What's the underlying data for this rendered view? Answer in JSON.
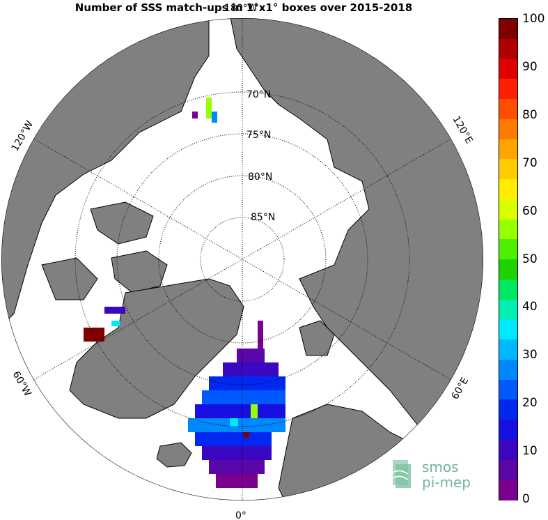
{
  "title": "Number of SSS match-ups in 1°x1° boxes over 2015-2018",
  "lat_labels": [
    "70°N",
    "75°N",
    "80°N",
    "85°N"
  ],
  "lon_labels": {
    "top": "180°W",
    "left_upper": "120°W",
    "left_lower": "60°W",
    "bottom": "0°",
    "right_upper": "120°E",
    "right_lower": "60°E"
  },
  "colorbar": {
    "ticks": [
      "100",
      "90",
      "80",
      "70",
      "60",
      "50",
      "40",
      "30",
      "20",
      "10",
      "0"
    ],
    "colors": [
      "#800000",
      "#b00000",
      "#e00000",
      "#ff2000",
      "#ff4e00",
      "#ff7a00",
      "#ffa400",
      "#ffcc00",
      "#ffee00",
      "#d8ff00",
      "#96ff00",
      "#4ef000",
      "#1ed200",
      "#00e860",
      "#00f0b0",
      "#00e8ff",
      "#00b8ff",
      "#0088ff",
      "#0058ff",
      "#0028f0",
      "#1810e0",
      "#3a08c0",
      "#5a06a8",
      "#7a0090"
    ]
  },
  "logo": {
    "line1": "smos",
    "line2": "pi-mep"
  },
  "colors": {
    "land": "#808080",
    "ocean": "#ffffff",
    "coast": "#000000"
  }
}
